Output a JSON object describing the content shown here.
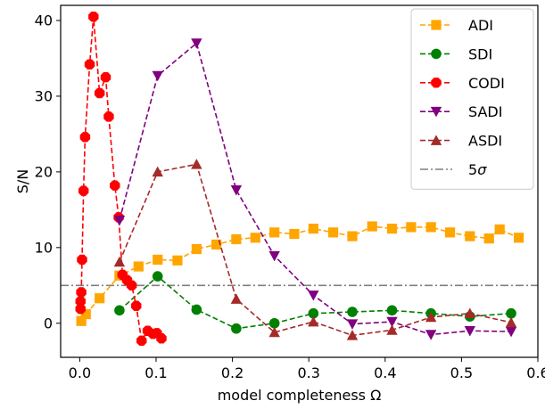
{
  "chart_data": {
    "type": "line",
    "title": "",
    "xlabel": "model completeness Ω",
    "ylabel": "S/N",
    "xlim": [
      -0.025,
      0.6
    ],
    "ylim": [
      -4.5,
      42
    ],
    "xticks": [
      0.0,
      0.1,
      0.2,
      0.3,
      0.4,
      0.5,
      0.6
    ],
    "xtick_labels": [
      "0.0",
      "0.1",
      "0.2",
      "0.3",
      "0.4",
      "0.5",
      "0.6"
    ],
    "yticks": [
      0,
      10,
      20,
      30,
      40
    ],
    "ytick_labels": [
      "0",
      "10",
      "20",
      "30",
      "40"
    ],
    "grid": false,
    "legend_position": "top-right",
    "series": [
      {
        "name": "ADI",
        "color": "#ffa500",
        "marker": "square",
        "linestyle": "dashed",
        "x": [
          0.002,
          0.008,
          0.026,
          0.052,
          0.077,
          0.102,
          0.128,
          0.153,
          0.179,
          0.205,
          0.23,
          0.255,
          0.281,
          0.306,
          0.332,
          0.357,
          0.383,
          0.409,
          0.434,
          0.46,
          0.485,
          0.511,
          0.536,
          0.55,
          0.575
        ],
        "y": [
          0.3,
          1.2,
          3.3,
          6.3,
          7.5,
          8.4,
          8.3,
          9.8,
          10.4,
          11.1,
          11.3,
          12.0,
          11.8,
          12.5,
          12.0,
          11.5,
          12.8,
          12.5,
          12.7,
          12.7,
          12.0,
          11.5,
          11.2,
          12.4,
          11.3
        ]
      },
      {
        "name": "SDI",
        "color": "#008000",
        "marker": "circle",
        "linestyle": "dashed",
        "x": [
          0.052,
          0.102,
          0.153,
          0.205,
          0.255,
          0.306,
          0.357,
          0.409,
          0.46,
          0.511,
          0.565
        ],
        "y": [
          1.7,
          6.2,
          1.8,
          -0.7,
          0.0,
          1.3,
          1.5,
          1.7,
          1.3,
          0.9,
          1.3
        ]
      },
      {
        "name": "CODI",
        "color": "#ff0000",
        "marker": "octagon",
        "linestyle": "dashed",
        "x": [
          0.001,
          0.001,
          0.002,
          0.003,
          0.005,
          0.007,
          0.013,
          0.018,
          0.026,
          0.034,
          0.038,
          0.046,
          0.051,
          0.056,
          0.062,
          0.068,
          0.074,
          0.081,
          0.089,
          0.096,
          0.101,
          0.107
        ],
        "y": [
          1.9,
          2.9,
          4.1,
          8.4,
          17.5,
          24.6,
          34.2,
          40.5,
          30.4,
          32.5,
          27.3,
          18.2,
          14.0,
          6.4,
          5.7,
          5.0,
          2.3,
          -2.3,
          -1.0,
          -1.4,
          -1.3,
          -2.0
        ]
      },
      {
        "name": "SADI",
        "color": "#800080",
        "marker": "triangle-down",
        "linestyle": "dashed",
        "x": [
          0.052,
          0.102,
          0.153,
          0.205,
          0.255,
          0.306,
          0.357,
          0.409,
          0.46,
          0.511,
          0.565
        ],
        "y": [
          13.6,
          32.7,
          37.0,
          17.6,
          8.9,
          3.7,
          -0.1,
          0.2,
          -1.5,
          -1.0,
          -1.1
        ]
      },
      {
        "name": "ASDI",
        "color": "#a52a2a",
        "marker": "triangle-up",
        "linestyle": "dashed",
        "x": [
          0.052,
          0.102,
          0.153,
          0.205,
          0.255,
          0.306,
          0.357,
          0.409,
          0.46,
          0.511,
          0.565
        ],
        "y": [
          8.1,
          20.0,
          21.0,
          3.2,
          -1.2,
          0.2,
          -1.6,
          -0.9,
          0.8,
          1.3,
          0.1
        ]
      }
    ],
    "reference_lines": [
      {
        "name": "5σ",
        "color": "#808080",
        "linestyle": "dashdot",
        "y": 5
      }
    ]
  }
}
